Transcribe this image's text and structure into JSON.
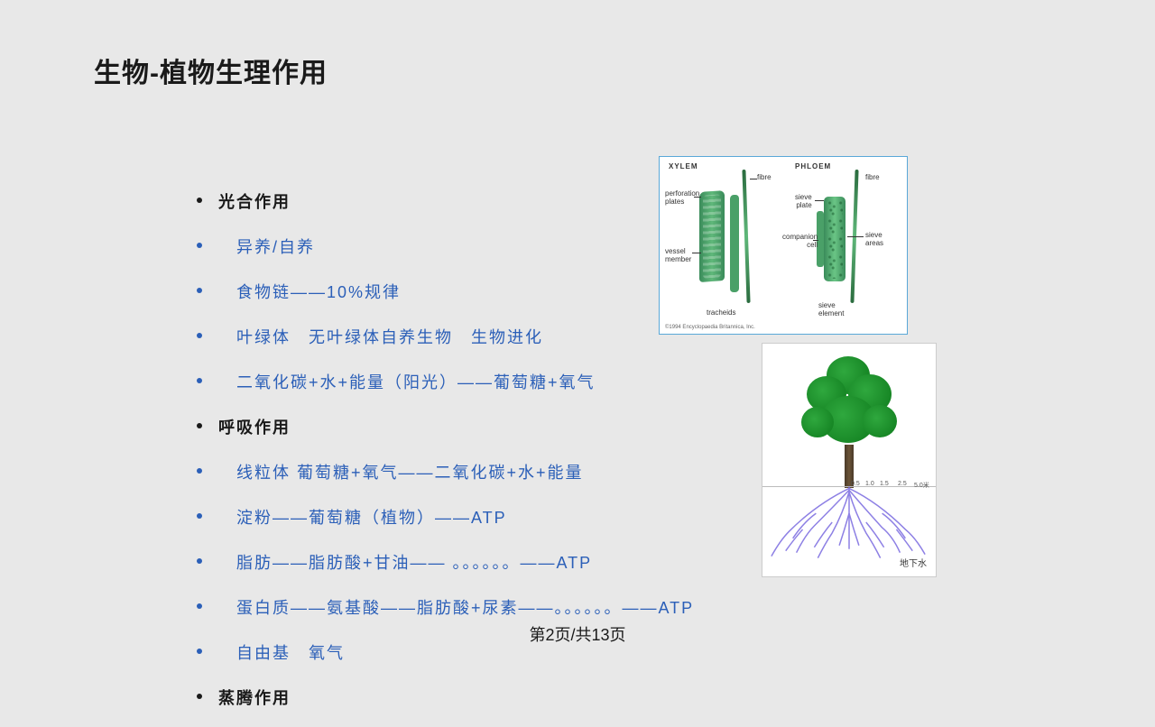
{
  "title": "生物-植物生理作用",
  "page_indicator": "第2页/共13页",
  "colors": {
    "background": "#e8e8e8",
    "text_black": "#1a1a1a",
    "text_blue": "#2b5fb8",
    "diagram_border": "#5aa8d8",
    "plant_green_dark": "#0e7a1c",
    "plant_green_light": "#2fa83e",
    "root_purple": "#7a6ae0",
    "trunk_brown": "#6b5438"
  },
  "list_items": [
    {
      "text": "光合作用",
      "style": "black",
      "indent": false
    },
    {
      "text": "异养/自养",
      "style": "blue",
      "indent": true
    },
    {
      "text": "食物链——10%规律",
      "style": "blue",
      "indent": true
    },
    {
      "text": "叶绿体　无叶绿体自养生物　生物进化",
      "style": "blue",
      "indent": true
    },
    {
      "text": "二氧化碳+水+能量（阳光）——葡萄糖+氧气",
      "style": "blue",
      "indent": true
    },
    {
      "text": "呼吸作用",
      "style": "black",
      "indent": false
    },
    {
      "text": "线粒体  葡萄糖+氧气——二氧化碳+水+能量",
      "style": "blue",
      "indent": true
    },
    {
      "text": "淀粉——葡萄糖（植物）——ATP",
      "style": "blue",
      "indent": true
    },
    {
      "text": "脂肪——脂肪酸+甘油—— 。。。。。。——ATP",
      "style": "blue",
      "indent": true
    },
    {
      "text": "蛋白质——氨基酸——脂肪酸+尿素——。。。。。。——ATP",
      "style": "blue",
      "indent": true
    },
    {
      "text": "自由基　氧气",
      "style": "blue",
      "indent": true
    },
    {
      "text": "蒸腾作用",
      "style": "black",
      "indent": false,
      "cutoff": true
    }
  ],
  "diagram1": {
    "title_left": "XYLEM",
    "title_right": "PHLOEM",
    "labels": {
      "perforation_plates": "perforation\nplates",
      "vessel_member": "vessel\nmember",
      "tracheids": "tracheids",
      "fibre_left": "fibre",
      "fibre_right": "fibre",
      "sieve_plate": "sieve\nplate",
      "companion_cell": "companion\ncell",
      "sieve_areas": "sieve\nareas",
      "sieve_element": "sieve\nelement"
    },
    "copyright": "©1994 Encyclopaedia Britannica, Inc."
  },
  "diagram2": {
    "scale_ticks": [
      "0.5",
      "1.0",
      "1.5",
      "2.5",
      "5.0米"
    ],
    "groundwater_label": "地下水"
  }
}
